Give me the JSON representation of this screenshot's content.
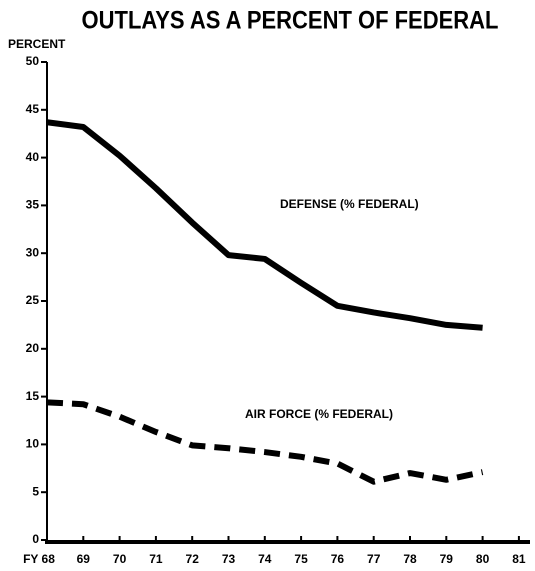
{
  "chart_data": {
    "type": "line",
    "title": "OUTLAYS AS A PERCENT OF FEDERAL",
    "y_label": "PERCENT",
    "categories": [
      "FY 68",
      "69",
      "70",
      "71",
      "72",
      "73",
      "74",
      "75",
      "76",
      "77",
      "78",
      "79",
      "80",
      "81"
    ],
    "series": [
      {
        "name": "DEFENSE (% FEDERAL)",
        "color": "#000000",
        "line_style": "solid",
        "values": [
          43.7,
          43.2,
          40.2,
          36.8,
          33.2,
          29.8,
          29.4,
          26.9,
          24.5,
          23.8,
          23.2,
          22.5,
          22.2,
          null
        ]
      },
      {
        "name": "AIR FORCE (% FEDERAL)",
        "color": "#000000",
        "line_style": "dashed",
        "values": [
          14.4,
          14.2,
          12.9,
          11.3,
          9.9,
          9.6,
          9.2,
          8.7,
          8.0,
          6.1,
          7.0,
          6.3,
          7.1,
          null
        ]
      }
    ],
    "ylim": [
      0,
      50
    ],
    "yticks": [
      0,
      5,
      10,
      15,
      20,
      25,
      30,
      35,
      40,
      45,
      50
    ],
    "grid": false
  }
}
